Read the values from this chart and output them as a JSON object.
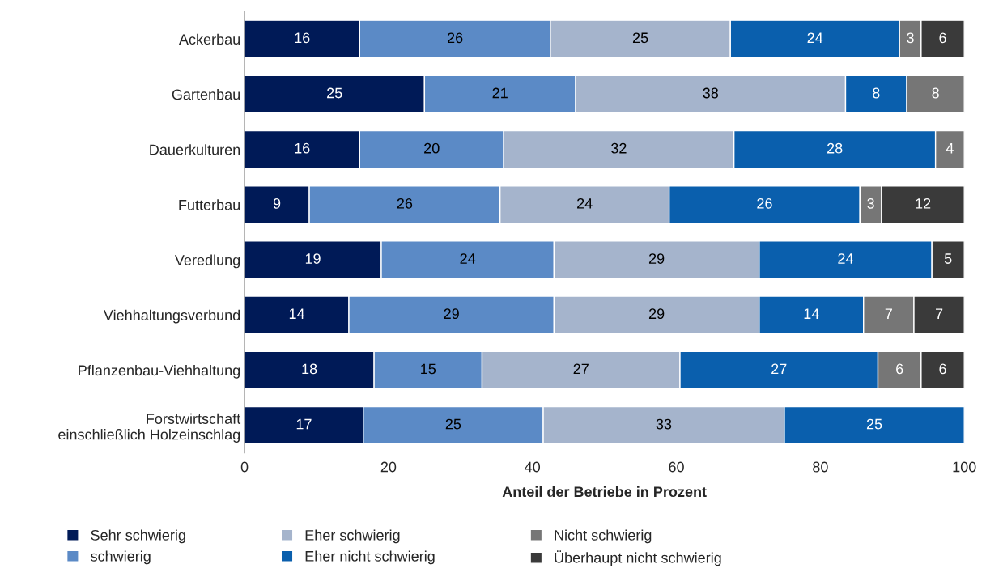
{
  "chart_data": {
    "type": "bar",
    "orientation": "horizontal",
    "stacked": true,
    "categories": [
      "Ackerbau",
      "Gartenbau",
      "Dauerkulturen",
      "Futterbau",
      "Veredlung",
      "Viehhaltungsverbund",
      "Pflanzenbau-Viehhaltung",
      "Forstwirtschaft\neinschließlich Holzeinschlag"
    ],
    "xlabel": "Anteil der Betriebe in Prozent",
    "xlim": [
      0,
      100
    ],
    "xticks": [
      0,
      20,
      40,
      60,
      80,
      100
    ],
    "grid": false,
    "legend": "bottom",
    "series": [
      {
        "name": "Sehr schwierig",
        "color": "#001a57",
        "values": [
          16,
          25,
          16,
          9,
          19,
          14.5,
          18,
          16.5
        ],
        "value_labels": [
          "16",
          "25",
          "16",
          "9",
          "19",
          "14",
          "18",
          "17"
        ]
      },
      {
        "name": "schwierig",
        "color": "#5b8ac6",
        "values": [
          26.5,
          21,
          20,
          26.5,
          24,
          28.5,
          15,
          25
        ],
        "value_labels": [
          "26",
          "21",
          "20",
          "26",
          "24",
          "29",
          "15",
          "25"
        ]
      },
      {
        "name": "Eher schwierig",
        "color": "#a5b4cc",
        "values": [
          25,
          37.5,
          32,
          23.5,
          28.5,
          28.5,
          27.5,
          33.5
        ],
        "value_labels": [
          "25",
          "38",
          "32",
          "24",
          "29",
          "29",
          "27",
          "33"
        ]
      },
      {
        "name": "Eher nicht schwierig",
        "color": "#0a5fad",
        "values": [
          23.5,
          8.5,
          28,
          26.5,
          24,
          14.5,
          27.5,
          25
        ],
        "value_labels": [
          "24",
          "8",
          "28",
          "26",
          "24",
          "14",
          "27",
          "25"
        ]
      },
      {
        "name": "Nicht schwierig",
        "color": "#767676",
        "values": [
          3,
          8,
          4,
          3,
          null,
          7,
          6,
          null
        ],
        "value_labels": [
          "3",
          "8",
          "4",
          "3",
          null,
          "7",
          "6",
          null
        ]
      },
      {
        "name": "Überhaupt nicht schwierig",
        "color": "#3a3a3a",
        "values": [
          6,
          null,
          null,
          11.5,
          4.5,
          7,
          6,
          null
        ],
        "value_labels": [
          "6",
          null,
          null,
          "12",
          "5",
          "7",
          "6",
          null
        ]
      }
    ]
  }
}
